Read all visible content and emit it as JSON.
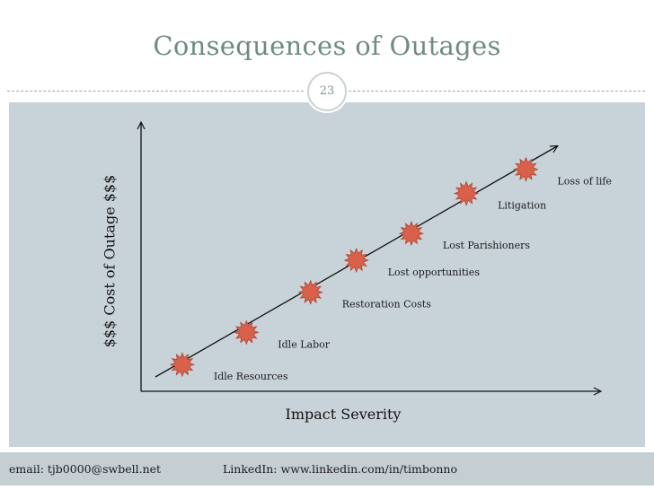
{
  "slide": {
    "title": "Consequences of Outages",
    "number": "23"
  },
  "footer": {
    "email": "email:  tjb0000@swbell.net",
    "linkedin": "LinkedIn:  www.linkedin.com/in/timbonno"
  },
  "chart_data": {
    "type": "scatter",
    "title": "",
    "xlabel": "Impact Severity",
    "ylabel": "$$$ Cost of Outage $$$",
    "xlim": [
      0,
      10
    ],
    "ylim": [
      0,
      10
    ],
    "trend": "linear increasing",
    "points": [
      {
        "label": "Idle Resources",
        "x": 0.9,
        "y": 1.0
      },
      {
        "label": "Idle Labor",
        "x": 2.3,
        "y": 2.2
      },
      {
        "label": "Restoration Costs",
        "x": 3.7,
        "y": 3.7
      },
      {
        "label": "Lost opportunities",
        "x": 4.7,
        "y": 4.9
      },
      {
        "label": "Lost Parishioners",
        "x": 5.9,
        "y": 5.9
      },
      {
        "label": "Litigation",
        "x": 7.1,
        "y": 7.4
      },
      {
        "label": "Loss of life",
        "x": 8.4,
        "y": 8.3
      }
    ],
    "marker_color": "#d9614c"
  }
}
